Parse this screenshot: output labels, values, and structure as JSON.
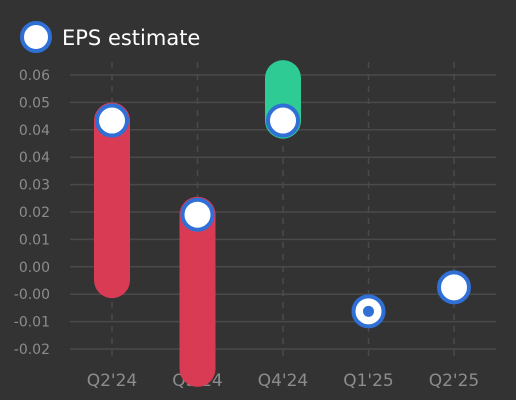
{
  "chart_data": {
    "type": "bar",
    "legend": {
      "label": "EPS estimate",
      "placement": "top-left"
    },
    "categories": [
      "Q2'24",
      "Q3'24",
      "Q4'24",
      "Q1'25",
      "Q2'25"
    ],
    "y_tick_labels": [
      "0.06",
      "0.05",
      "0.04",
      "0.04",
      "0.03",
      "0.02",
      "0.01",
      "0.00",
      "-0.00",
      "-0.01",
      "-0.02"
    ],
    "ylim": [
      -0.0229,
      0.0647
    ],
    "grid": true,
    "series": [
      {
        "name": "EPS estimate",
        "values": [
          0.0476,
          0.0201,
          0.0476,
          -0.0081,
          -0.0011
        ]
      },
      {
        "values": [
          0.001,
          -0.0249,
          0.06,
          -0.0081,
          -0.0011
        ]
      }
    ],
    "colors": {
      "background": "#333333",
      "grid": "#4a4a4a",
      "tick": "#8c8c8c",
      "miss": "#d93b55",
      "beat": "#2ecc94",
      "marker_fill": "#ffffff",
      "marker_stroke": "#2f6fd6"
    }
  }
}
